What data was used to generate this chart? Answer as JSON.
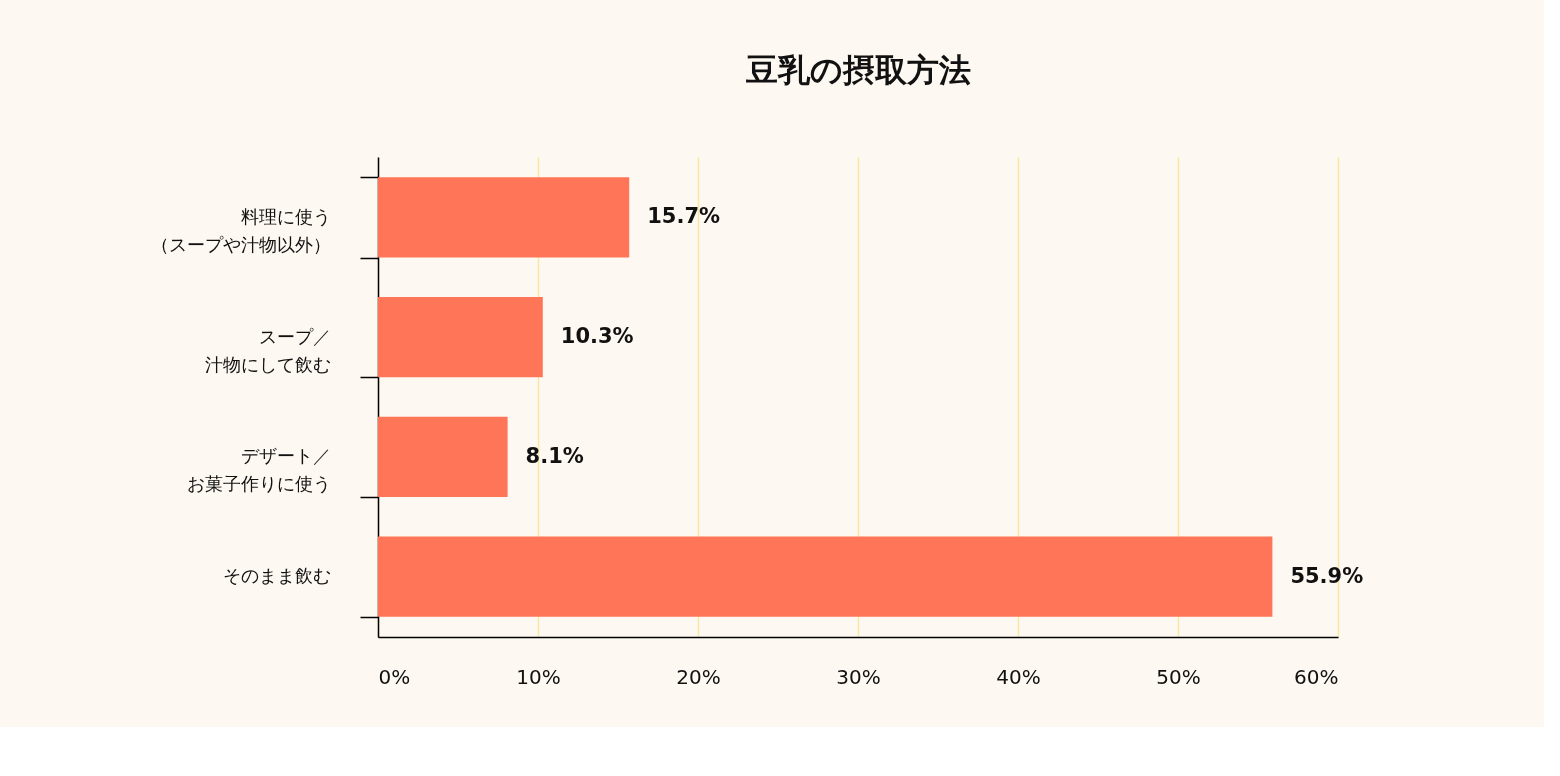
{
  "chart_data": {
    "type": "bar",
    "orientation": "horizontal",
    "title": "豆乳の摂取方法",
    "categories": [
      "料理に使う（スープや汁物以外）",
      "スープ／汁物にして飲む",
      "デザート／お菓子作りに使う",
      "そのまま飲む"
    ],
    "values": [
      15.7,
      10.3,
      8.1,
      55.9
    ],
    "value_labels": [
      "15.7%",
      "10.3%",
      "8.1%",
      "55.9%"
    ],
    "color": "#ff7557",
    "xlim": [
      0,
      60
    ],
    "xticks": [
      {
        "value": 0,
        "label": "0%"
      },
      {
        "value": 10,
        "label": "10%"
      },
      {
        "value": 20,
        "label": "20%"
      },
      {
        "value": 30,
        "label": "30%"
      },
      {
        "value": 40,
        "label": "40%"
      },
      {
        "value": 50,
        "label": "50%"
      },
      {
        "value": 60,
        "label": "60%"
      }
    ],
    "grid": "x"
  }
}
